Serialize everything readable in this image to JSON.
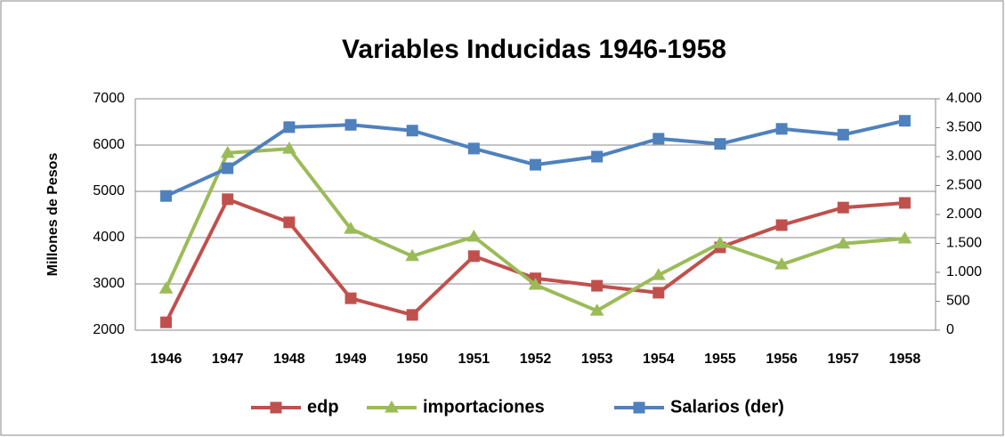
{
  "chart_data": {
    "type": "line",
    "title": "Variables Inducidas 1946-1958",
    "y_label": "Millones de Pesos",
    "categories": [
      "1946",
      "1947",
      "1948",
      "1949",
      "1950",
      "1951",
      "1952",
      "1953",
      "1954",
      "1955",
      "1956",
      "1957",
      "1958"
    ],
    "series": [
      {
        "name": "edp",
        "color": "#c0504d",
        "marker": "square",
        "values": [
          2170,
          4830,
          4330,
          2690,
          2330,
          3600,
          3120,
          2960,
          2810,
          3790,
          4270,
          4650,
          4750
        ]
      },
      {
        "name": "importaciones",
        "color": "#9bbb59",
        "marker": "triangle",
        "values": [
          2900,
          5830,
          5920,
          4190,
          3600,
          4020,
          2980,
          2420,
          3190,
          3880,
          3420,
          3870,
          3980
        ]
      },
      {
        "name": "Salarios (der)",
        "color": "#4f81bd",
        "marker": "square",
        "axis": "y2",
        "values": [
          2320,
          2800,
          3510,
          3550,
          3450,
          3140,
          2860,
          3000,
          3310,
          3220,
          3480,
          3380,
          3620
        ]
      }
    ],
    "ylim": [
      2000,
      7000
    ],
    "yticks": [
      2000,
      3000,
      4000,
      5000,
      6000,
      7000
    ],
    "y2lim": [
      0,
      4000
    ],
    "y2ticks": [
      0,
      500,
      {
        "value": 1000,
        "label": "1.000"
      },
      {
        "value": 1500,
        "label": "1.500"
      },
      {
        "value": 2000,
        "label": "2.000"
      },
      {
        "value": 2500,
        "label": "2.500"
      },
      {
        "value": 3000,
        "label": "3.000"
      },
      {
        "value": 3500,
        "label": "3.500"
      },
      {
        "value": 4000,
        "label": "4.000"
      }
    ],
    "grid": true,
    "legend": "bottom"
  }
}
